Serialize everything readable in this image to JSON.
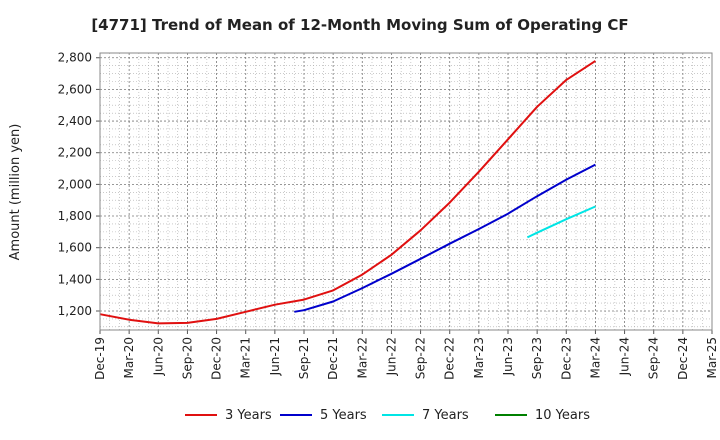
{
  "chart_data": {
    "type": "line",
    "title": "[4771]  Trend of Mean of 12-Month Moving Sum of Operating CF",
    "xlabel": "",
    "ylabel": "Amount (million yen)",
    "ylim": [
      1080,
      2830
    ],
    "yticks": [
      1200,
      1400,
      1600,
      1800,
      2000,
      2200,
      2400,
      2600,
      2800
    ],
    "ytick_labels": [
      "1,200",
      "1,400",
      "1,600",
      "1,800",
      "2,000",
      "2,200",
      "2,400",
      "2,600",
      "2,800"
    ],
    "x_tick_labels": [
      "Dec-19",
      "Mar-20",
      "Jun-20",
      "Sep-20",
      "Dec-20",
      "Mar-21",
      "Jun-21",
      "Sep-21",
      "Dec-21",
      "Mar-22",
      "Jun-22",
      "Sep-22",
      "Dec-22",
      "Mar-23",
      "Jun-23",
      "Sep-23",
      "Dec-23",
      "Mar-24",
      "Jun-24",
      "Sep-24",
      "Dec-24",
      "Mar-25"
    ],
    "x_range_months": [
      0,
      63
    ],
    "grid": true,
    "legend_position": "bottom",
    "series": [
      {
        "name": "3 Years",
        "color": "#e01010",
        "x_months": [
          0,
          3,
          6,
          9,
          12,
          15,
          18,
          21,
          24,
          27,
          30,
          33,
          36,
          39,
          42,
          45,
          48,
          51
        ],
        "values": [
          1180,
          1145,
          1122,
          1125,
          1150,
          1195,
          1240,
          1272,
          1330,
          1430,
          1555,
          1710,
          1885,
          2080,
          2285,
          2490,
          2660,
          2780
        ]
      },
      {
        "name": "5 Years",
        "color": "#0000cc",
        "x_months": [
          20,
          21,
          24,
          27,
          30,
          33,
          36,
          39,
          42,
          45,
          48,
          51
        ],
        "values": [
          1195,
          1205,
          1260,
          1345,
          1435,
          1530,
          1625,
          1718,
          1815,
          1925,
          2030,
          2125
        ]
      },
      {
        "name": "7 Years",
        "color": "#00e5e5",
        "x_months": [
          44,
          45,
          48,
          51
        ],
        "values": [
          1665,
          1695,
          1780,
          1860
        ]
      },
      {
        "name": "10 Years",
        "color": "#008000",
        "x_months": [],
        "values": []
      }
    ]
  }
}
